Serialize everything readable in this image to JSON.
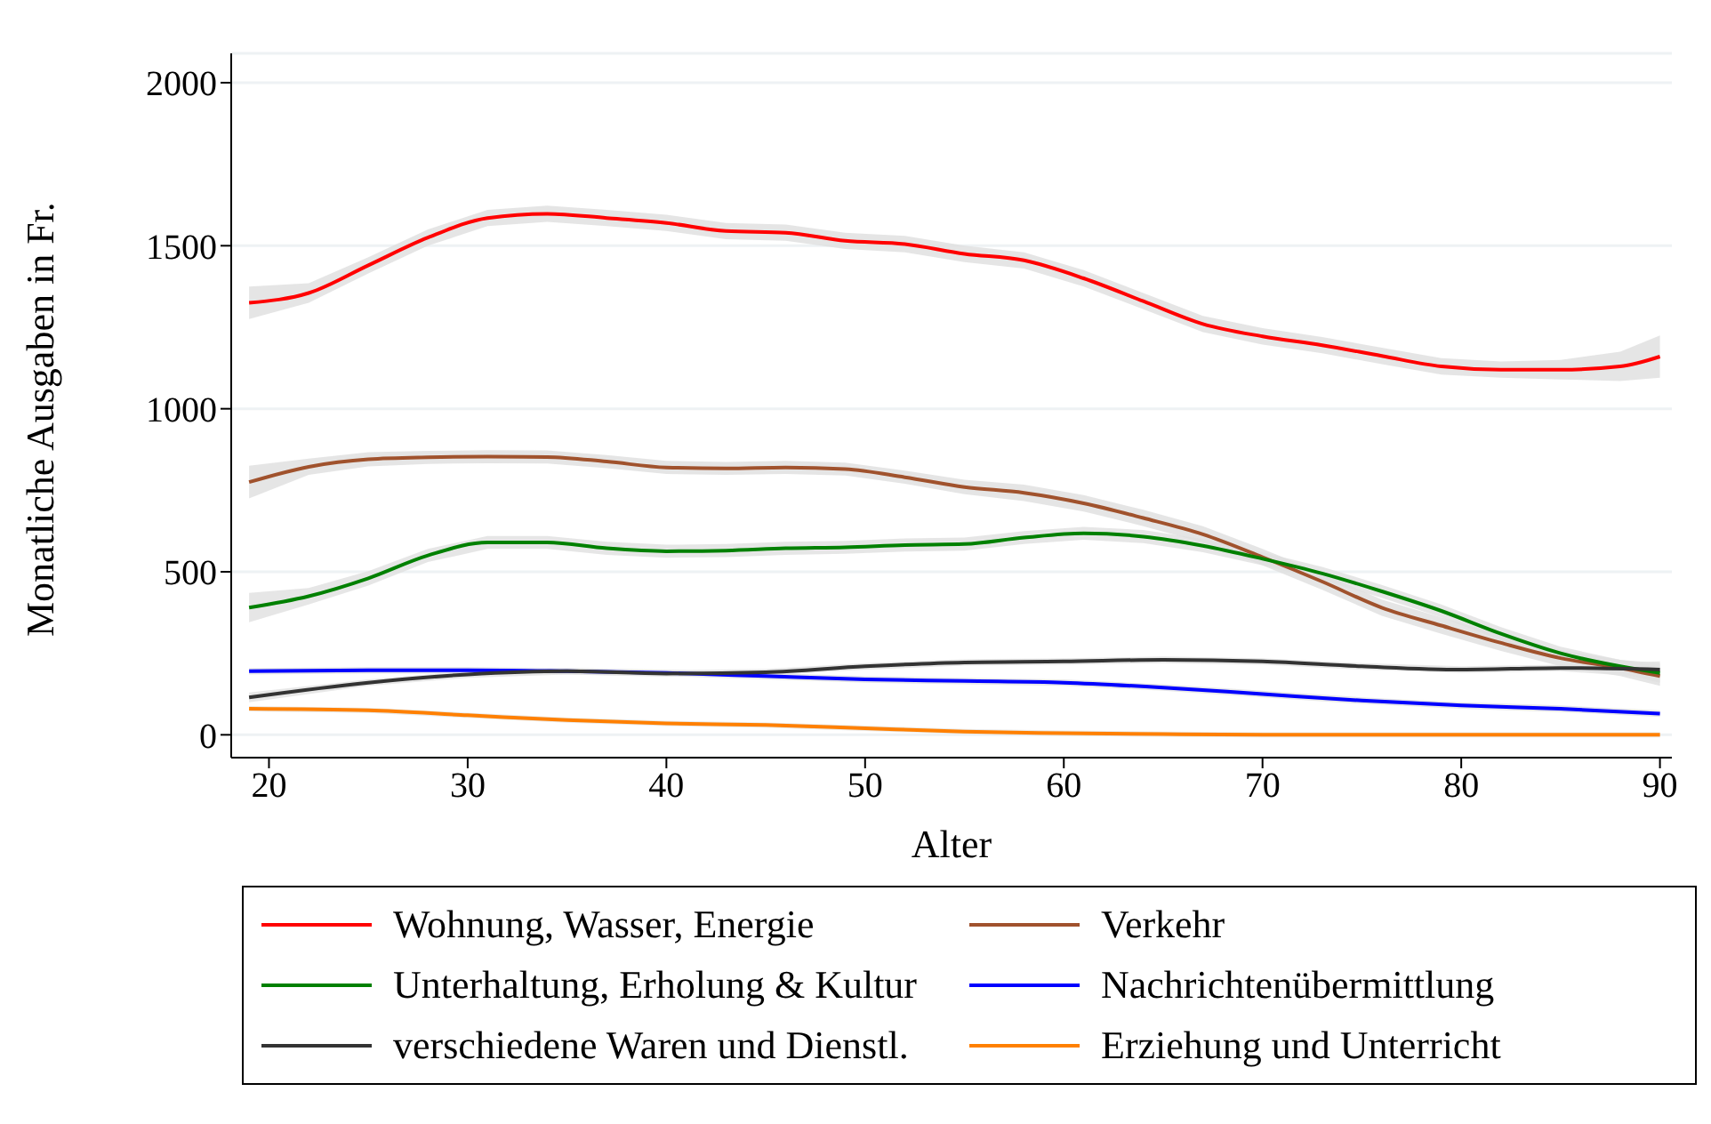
{
  "chart_data": {
    "type": "line",
    "xlabel": "Alter",
    "ylabel": "Monatliche Ausgaben in Fr.",
    "xlim": [
      18.1,
      90.6
    ],
    "xticks": [
      20,
      30,
      40,
      50,
      60,
      70,
      80,
      90
    ],
    "ylim": [
      -70,
      2090
    ],
    "yticks": [
      0,
      500,
      1000,
      1500,
      2000
    ],
    "grid": "y",
    "legend": "bottom",
    "line_style": "solid",
    "marker": "none",
    "series": [
      {
        "name": "Wohnung, Wasser, Energie",
        "color": "#ff0000",
        "x": [
          19,
          22,
          25,
          28,
          31,
          34,
          37,
          40,
          43,
          46,
          49,
          52,
          55,
          58,
          61,
          64,
          67,
          70,
          73,
          76,
          79,
          82,
          85,
          88,
          90
        ],
        "values": [
          1325,
          1355,
          1440,
          1525,
          1585,
          1598,
          1585,
          1570,
          1545,
          1540,
          1515,
          1505,
          1475,
          1455,
          1400,
          1330,
          1260,
          1222,
          1195,
          1162,
          1130,
          1120,
          1120,
          1130,
          1160
        ],
        "lower": [
          1275,
          1325,
          1415,
          1500,
          1560,
          1573,
          1560,
          1545,
          1520,
          1515,
          1490,
          1480,
          1450,
          1430,
          1375,
          1305,
          1235,
          1197,
          1170,
          1137,
          1105,
          1095,
          1090,
          1085,
          1095
        ],
        "upper": [
          1375,
          1385,
          1465,
          1550,
          1610,
          1623,
          1610,
          1595,
          1570,
          1565,
          1540,
          1530,
          1500,
          1480,
          1425,
          1355,
          1285,
          1247,
          1220,
          1187,
          1155,
          1145,
          1150,
          1175,
          1225
        ]
      },
      {
        "name": "Verkehr",
        "color": "#a0522d",
        "x": [
          19,
          22,
          25,
          28,
          31,
          34,
          37,
          40,
          43,
          46,
          49,
          52,
          55,
          58,
          61,
          64,
          67,
          70,
          73,
          76,
          79,
          82,
          85,
          88,
          90
        ],
        "values": [
          775,
          822,
          845,
          851,
          853,
          852,
          838,
          820,
          817,
          820,
          815,
          790,
          760,
          742,
          710,
          665,
          615,
          545,
          470,
          390,
          335,
          282,
          235,
          205,
          180
        ],
        "lower": [
          725,
          797,
          823,
          831,
          833,
          832,
          818,
          800,
          797,
          800,
          795,
          770,
          738,
          717,
          685,
          640,
          590,
          520,
          445,
          365,
          310,
          257,
          210,
          180,
          150
        ],
        "upper": [
          825,
          847,
          867,
          871,
          873,
          872,
          858,
          840,
          837,
          840,
          835,
          810,
          782,
          767,
          735,
          690,
          640,
          570,
          495,
          415,
          360,
          307,
          260,
          230,
          210
        ]
      },
      {
        "name": "Unterhaltung, Erholung & Kultur",
        "color": "#008000",
        "x": [
          19,
          22,
          25,
          28,
          31,
          34,
          37,
          40,
          43,
          46,
          49,
          52,
          55,
          58,
          61,
          64,
          67,
          70,
          73,
          76,
          79,
          82,
          85,
          88,
          90
        ],
        "values": [
          390,
          425,
          480,
          550,
          590,
          590,
          572,
          563,
          565,
          572,
          575,
          582,
          585,
          605,
          618,
          608,
          580,
          540,
          495,
          440,
          380,
          310,
          250,
          210,
          190
        ],
        "lower": [
          345,
          400,
          458,
          530,
          570,
          570,
          552,
          543,
          545,
          552,
          555,
          562,
          565,
          585,
          598,
          588,
          560,
          520,
          475,
          420,
          360,
          290,
          230,
          190,
          160
        ],
        "upper": [
          435,
          450,
          502,
          570,
          610,
          610,
          592,
          583,
          585,
          592,
          595,
          602,
          605,
          625,
          638,
          628,
          600,
          560,
          515,
          460,
          400,
          330,
          270,
          230,
          220
        ]
      },
      {
        "name": "Nachrichtenübermittlung",
        "color": "#0000ff",
        "x": [
          19,
          25,
          30,
          35,
          40,
          45,
          50,
          55,
          60,
          65,
          70,
          75,
          80,
          85,
          90
        ],
        "values": [
          195,
          198,
          198,
          195,
          190,
          180,
          170,
          165,
          160,
          145,
          125,
          105,
          90,
          80,
          65
        ],
        "lower": [
          185,
          188,
          188,
          185,
          180,
          170,
          160,
          155,
          150,
          135,
          115,
          95,
          80,
          70,
          55
        ],
        "upper": [
          205,
          208,
          208,
          205,
          200,
          190,
          180,
          175,
          170,
          155,
          135,
          115,
          100,
          90,
          75
        ]
      },
      {
        "name": "verschiedene Waren und Dienstl.",
        "color": "#333333",
        "x": [
          19,
          25,
          30,
          35,
          40,
          45,
          50,
          55,
          60,
          65,
          70,
          75,
          80,
          85,
          90
        ],
        "values": [
          115,
          160,
          185,
          195,
          188,
          192,
          210,
          222,
          225,
          230,
          225,
          210,
          200,
          205,
          200
        ],
        "lower": [
          100,
          150,
          175,
          185,
          178,
          182,
          200,
          212,
          215,
          220,
          215,
          200,
          190,
          195,
          175
        ],
        "upper": [
          130,
          170,
          195,
          205,
          198,
          202,
          220,
          232,
          235,
          240,
          235,
          220,
          210,
          215,
          225
        ]
      },
      {
        "name": "Erziehung und Unterricht",
        "color": "#ff8000",
        "x": [
          19,
          25,
          30,
          35,
          40,
          45,
          50,
          55,
          60,
          65,
          70,
          75,
          80,
          85,
          90
        ],
        "values": [
          80,
          75,
          60,
          45,
          35,
          30,
          20,
          10,
          5,
          2,
          0,
          0,
          0,
          0,
          0
        ],
        "lower": [
          72,
          67,
          52,
          37,
          27,
          22,
          12,
          2,
          -3,
          -6,
          -8,
          -8,
          -8,
          -8,
          -8
        ],
        "upper": [
          88,
          83,
          68,
          53,
          43,
          38,
          28,
          18,
          13,
          10,
          8,
          8,
          8,
          8,
          8
        ]
      }
    ]
  }
}
